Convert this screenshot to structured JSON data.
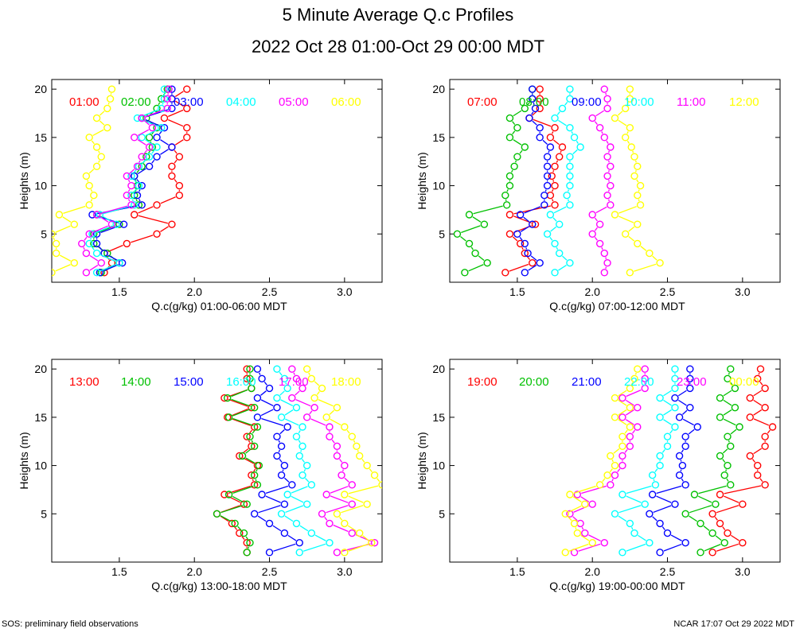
{
  "page": {
    "title": "5 Minute Average Q.c Profiles",
    "subtitle": "2022 Oct 28 01:00-Oct 29 00:00 MDT",
    "footer_left": "SOS: preliminary field observations",
    "footer_right": "NCAR 17:07 Oct 29 2022 MDT"
  },
  "chart_data": [
    {
      "type": "line",
      "xlabel": "Q.c(g/kg) 01:00-06:00 MDT",
      "ylabel": "Heights (m)",
      "xlim": [
        1.05,
        3.25
      ],
      "ylim": [
        0,
        21
      ],
      "xticks": [
        1.5,
        2.0,
        2.5,
        3.0
      ],
      "yticks": [
        5,
        10,
        15,
        20
      ],
      "y": [
        1,
        2,
        3,
        4,
        5,
        6,
        7,
        8,
        9,
        10,
        11,
        12,
        13,
        14,
        15,
        16,
        17,
        18,
        19,
        20
      ],
      "series": [
        {
          "name": "01:00",
          "color": "#ff0000",
          "values": [
            1.4,
            1.45,
            1.4,
            1.55,
            1.75,
            1.85,
            1.6,
            1.75,
            1.9,
            1.9,
            1.85,
            1.85,
            1.9,
            1.85,
            1.95,
            1.95,
            1.8,
            1.95,
            1.85,
            1.95
          ]
        },
        {
          "name": "02:00",
          "color": "#00c000",
          "values": [
            1.38,
            1.5,
            1.42,
            1.33,
            1.33,
            1.5,
            1.35,
            1.63,
            1.6,
            1.62,
            1.6,
            1.65,
            1.68,
            1.72,
            1.7,
            1.75,
            1.68,
            1.75,
            1.78,
            1.82
          ]
        },
        {
          "name": "03:00",
          "color": "#0000ff",
          "values": [
            1.37,
            1.52,
            1.4,
            1.35,
            1.35,
            1.53,
            1.32,
            1.65,
            1.62,
            1.65,
            1.6,
            1.7,
            1.75,
            1.85,
            1.75,
            1.8,
            1.65,
            1.85,
            1.85,
            1.85
          ]
        },
        {
          "name": "04:00",
          "color": "#00ffff",
          "values": [
            1.35,
            1.5,
            1.35,
            1.3,
            1.32,
            1.48,
            1.37,
            1.6,
            1.58,
            1.63,
            1.58,
            1.63,
            1.7,
            1.75,
            1.65,
            1.78,
            1.62,
            1.78,
            1.8,
            1.8
          ]
        },
        {
          "name": "05:00",
          "color": "#ff00ff",
          "values": [
            1.28,
            1.38,
            1.28,
            1.25,
            1.3,
            1.45,
            1.35,
            1.58,
            1.55,
            1.58,
            1.55,
            1.62,
            1.65,
            1.7,
            1.6,
            1.72,
            1.65,
            1.82,
            1.82,
            1.83
          ]
        },
        {
          "name": "06:00",
          "color": "#ffff00",
          "values": [
            1.05,
            1.2,
            1.08,
            1.08,
            1.05,
            1.2,
            1.1,
            1.3,
            1.33,
            1.3,
            1.28,
            1.35,
            1.38,
            1.35,
            1.3,
            1.42,
            1.35,
            1.42,
            1.44,
            1.45
          ]
        }
      ]
    },
    {
      "type": "line",
      "xlabel": "Q.c(g/kg) 07:00-12:00 MDT",
      "ylabel": "Heights (m)",
      "xlim": [
        1.05,
        3.25
      ],
      "ylim": [
        0,
        21
      ],
      "xticks": [
        1.5,
        2.0,
        2.5,
        3.0
      ],
      "yticks": [
        5,
        10,
        15,
        20
      ],
      "y": [
        1,
        2,
        3,
        4,
        5,
        6,
        7,
        8,
        9,
        10,
        11,
        12,
        13,
        14,
        15,
        16,
        17,
        18,
        19,
        20
      ],
      "series": [
        {
          "name": "07:00",
          "color": "#ff0000",
          "values": [
            1.42,
            1.6,
            1.55,
            1.52,
            1.45,
            1.62,
            1.45,
            1.75,
            1.72,
            1.75,
            1.73,
            1.75,
            1.78,
            1.8,
            1.72,
            1.75,
            1.58,
            1.65,
            1.65,
            1.65
          ]
        },
        {
          "name": "08:00",
          "color": "#00c000",
          "values": [
            1.15,
            1.3,
            1.22,
            1.18,
            1.1,
            1.28,
            1.18,
            1.43,
            1.42,
            1.45,
            1.45,
            1.48,
            1.5,
            1.55,
            1.45,
            1.5,
            1.45,
            1.55,
            1.6,
            1.6
          ]
        },
        {
          "name": "09:00",
          "color": "#0000ff",
          "values": [
            1.55,
            1.65,
            1.57,
            1.55,
            1.5,
            1.6,
            1.52,
            1.68,
            1.68,
            1.7,
            1.7,
            1.7,
            1.7,
            1.72,
            1.65,
            1.65,
            1.58,
            1.62,
            1.6,
            1.6
          ]
        },
        {
          "name": "10:00",
          "color": "#00ffff",
          "values": [
            1.75,
            1.85,
            1.78,
            1.75,
            1.7,
            1.78,
            1.72,
            1.85,
            1.83,
            1.85,
            1.85,
            1.85,
            1.85,
            1.92,
            1.88,
            1.85,
            1.75,
            1.8,
            1.85,
            1.85
          ]
        },
        {
          "name": "11:00",
          "color": "#ff00ff",
          "values": [
            2.08,
            2.1,
            2.08,
            2.05,
            2.0,
            2.05,
            2.0,
            2.12,
            2.1,
            2.12,
            2.1,
            2.12,
            2.1,
            2.12,
            2.08,
            2.05,
            2.0,
            2.1,
            2.1,
            2.08
          ]
        },
        {
          "name": "12:00",
          "color": "#ffff00",
          "values": [
            2.25,
            2.45,
            2.38,
            2.3,
            2.22,
            2.3,
            2.15,
            2.32,
            2.3,
            2.32,
            2.28,
            2.3,
            2.28,
            2.26,
            2.22,
            2.25,
            2.15,
            2.22,
            2.25,
            2.25
          ]
        }
      ]
    },
    {
      "type": "line",
      "xlabel": "Q.c(g/kg) 13:00-18:00 MDT",
      "ylabel": "Heights (m)",
      "xlim": [
        1.05,
        3.25
      ],
      "ylim": [
        0,
        21
      ],
      "xticks": [
        1.5,
        2.0,
        2.5,
        3.0
      ],
      "yticks": [
        5,
        10,
        15,
        20
      ],
      "y": [
        1,
        2,
        3,
        4,
        5,
        6,
        7,
        8,
        9,
        10,
        11,
        12,
        13,
        14,
        15,
        16,
        17,
        18,
        19,
        20
      ],
      "series": [
        {
          "name": "13:00",
          "color": "#ff0000",
          "values": [
            2.35,
            2.35,
            2.3,
            2.25,
            2.15,
            2.33,
            2.2,
            2.4,
            2.38,
            2.42,
            2.3,
            2.38,
            2.35,
            2.4,
            2.22,
            2.38,
            2.2,
            2.38,
            2.35,
            2.35
          ]
        },
        {
          "name": "14:00",
          "color": "#00c000",
          "values": [
            2.35,
            2.37,
            2.33,
            2.27,
            2.15,
            2.35,
            2.23,
            2.42,
            2.4,
            2.43,
            2.32,
            2.4,
            2.37,
            2.42,
            2.23,
            2.4,
            2.22,
            2.38,
            2.37,
            2.37
          ]
        },
        {
          "name": "15:00",
          "color": "#0000ff",
          "values": [
            2.5,
            2.7,
            2.6,
            2.5,
            2.4,
            2.6,
            2.45,
            2.65,
            2.58,
            2.6,
            2.55,
            2.58,
            2.55,
            2.62,
            2.42,
            2.55,
            2.42,
            2.5,
            2.45,
            2.42
          ]
        },
        {
          "name": "16:00",
          "color": "#00ffff",
          "values": [
            2.7,
            2.9,
            2.78,
            2.68,
            2.58,
            2.75,
            2.62,
            2.78,
            2.72,
            2.75,
            2.7,
            2.72,
            2.68,
            2.72,
            2.58,
            2.68,
            2.55,
            2.62,
            2.6,
            2.55
          ]
        },
        {
          "name": "17:00",
          "color": "#ff00ff",
          "values": [
            2.95,
            3.2,
            3.05,
            2.9,
            2.85,
            3.05,
            2.88,
            3.05,
            2.98,
            3.0,
            2.95,
            2.95,
            2.9,
            2.9,
            2.75,
            2.8,
            2.65,
            2.72,
            2.68,
            2.65
          ]
        },
        {
          "name": "18:00",
          "color": "#ffff00",
          "values": [
            3.0,
            3.18,
            3.1,
            3.0,
            2.95,
            3.15,
            3.0,
            3.25,
            3.2,
            3.15,
            3.1,
            3.08,
            3.05,
            3.0,
            2.88,
            2.95,
            2.8,
            2.85,
            2.78,
            2.75
          ]
        }
      ]
    },
    {
      "type": "line",
      "xlabel": "Q.c(g/kg) 19:00-00:00 MDT",
      "ylabel": "Heights (m)",
      "xlim": [
        1.05,
        3.25
      ],
      "ylim": [
        0,
        21
      ],
      "xticks": [
        1.5,
        2.0,
        2.5,
        3.0
      ],
      "yticks": [
        5,
        10,
        15,
        20
      ],
      "y": [
        1,
        2,
        3,
        4,
        5,
        6,
        7,
        8,
        9,
        10,
        11,
        12,
        13,
        14,
        15,
        16,
        17,
        18,
        19,
        20
      ],
      "series": [
        {
          "name": "19:00",
          "color": "#ff0000",
          "values": [
            2.8,
            3.0,
            2.9,
            2.85,
            2.8,
            3.0,
            2.85,
            3.15,
            3.1,
            3.1,
            3.05,
            3.15,
            3.15,
            3.2,
            3.05,
            3.15,
            3.05,
            3.15,
            3.1,
            3.12
          ]
        },
        {
          "name": "20:00",
          "color": "#00c000",
          "values": [
            2.72,
            2.88,
            2.8,
            2.72,
            2.62,
            2.82,
            2.68,
            2.92,
            2.88,
            2.9,
            2.85,
            2.92,
            2.9,
            2.98,
            2.85,
            2.95,
            2.85,
            2.95,
            2.9,
            2.92
          ]
        },
        {
          "name": "21:00",
          "color": "#0000ff",
          "values": [
            2.45,
            2.62,
            2.5,
            2.45,
            2.38,
            2.55,
            2.4,
            2.62,
            2.58,
            2.6,
            2.58,
            2.62,
            2.62,
            2.7,
            2.58,
            2.65,
            2.55,
            2.65,
            2.65,
            2.65
          ]
        },
        {
          "name": "22:00",
          "color": "#00ffff",
          "values": [
            2.2,
            2.38,
            2.28,
            2.25,
            2.15,
            2.35,
            2.2,
            2.42,
            2.4,
            2.45,
            2.45,
            2.5,
            2.5,
            2.55,
            2.45,
            2.55,
            2.45,
            2.55,
            2.55,
            2.55
          ]
        },
        {
          "name": "23:00",
          "color": "#ff00ff",
          "values": [
            1.88,
            2.08,
            1.95,
            1.92,
            1.85,
            2.0,
            1.9,
            2.12,
            2.15,
            2.2,
            2.2,
            2.25,
            2.25,
            2.3,
            2.2,
            2.3,
            2.2,
            2.35,
            2.35,
            2.35
          ]
        },
        {
          "name": "00:00",
          "color": "#ffff00",
          "values": [
            1.82,
            2.0,
            1.9,
            1.88,
            1.82,
            1.95,
            1.85,
            2.05,
            2.1,
            2.15,
            2.12,
            2.2,
            2.2,
            2.25,
            2.15,
            2.25,
            2.15,
            2.25,
            2.28,
            2.3
          ]
        }
      ]
    }
  ]
}
